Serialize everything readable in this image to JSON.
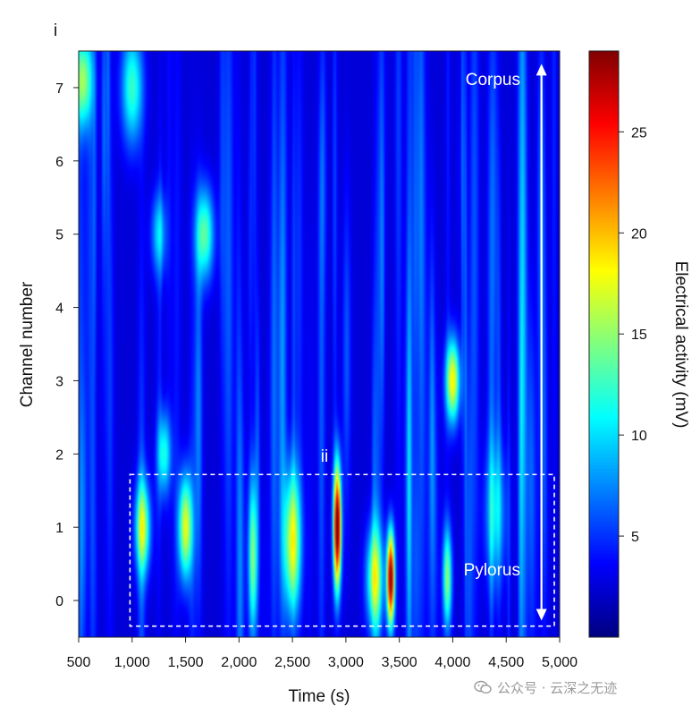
{
  "chart_data": {
    "type": "heatmap",
    "panel_label": "i",
    "xlabel": "Time (s)",
    "ylabel": "Channel number",
    "colorbar_label": "Electrical activity (mV)",
    "xlim": [
      500,
      5000
    ],
    "ylim": [
      -0.5,
      7.5
    ],
    "x_ticks": [
      500,
      1000,
      1500,
      2000,
      2500,
      3000,
      3500,
      4000,
      4500,
      5000
    ],
    "x_tick_labels": [
      "500",
      "1,000",
      "1,500",
      "2,000",
      "2,500",
      "3,000",
      "3,500",
      "4,000",
      "4,500",
      "5,000"
    ],
    "y_ticks": [
      0,
      1,
      2,
      3,
      4,
      5,
      6,
      7
    ],
    "y_tick_labels": [
      "0",
      "1",
      "2",
      "3",
      "4",
      "5",
      "6",
      "7"
    ],
    "colorbar_range": [
      0,
      29
    ],
    "colorbar_ticks": [
      5,
      10,
      15,
      20,
      25
    ],
    "colorbar_tick_labels": [
      "5",
      "10",
      "15",
      "20",
      "25"
    ],
    "colormap": "jet",
    "background_level": 2.5,
    "hotspots": [
      {
        "t": 540,
        "ch": 7.1,
        "st": 60,
        "sc": 0.45,
        "v": 12
      },
      {
        "t": 1000,
        "ch": 7.0,
        "st": 70,
        "sc": 0.55,
        "v": 10
      },
      {
        "t": 1250,
        "ch": 5.0,
        "st": 50,
        "sc": 0.4,
        "v": 7
      },
      {
        "t": 1680,
        "ch": 5.0,
        "st": 60,
        "sc": 0.45,
        "v": 11
      },
      {
        "t": 1100,
        "ch": 1.0,
        "st": 50,
        "sc": 0.45,
        "v": 13
      },
      {
        "t": 1500,
        "ch": 1.0,
        "st": 45,
        "sc": 0.5,
        "v": 15
      },
      {
        "t": 1300,
        "ch": 2.0,
        "st": 45,
        "sc": 0.4,
        "v": 9
      },
      {
        "t": 2130,
        "ch": 0.6,
        "st": 30,
        "sc": 0.8,
        "v": 12
      },
      {
        "t": 2500,
        "ch": 0.8,
        "st": 55,
        "sc": 0.7,
        "v": 15
      },
      {
        "t": 2920,
        "ch": 1.0,
        "st": 25,
        "sc": 0.6,
        "v": 28
      },
      {
        "t": 3270,
        "ch": 0.3,
        "st": 55,
        "sc": 0.5,
        "v": 13
      },
      {
        "t": 3420,
        "ch": 0.3,
        "st": 25,
        "sc": 0.45,
        "v": 27
      },
      {
        "t": 4000,
        "ch": 3.0,
        "st": 45,
        "sc": 0.4,
        "v": 16
      },
      {
        "t": 3950,
        "ch": 0.3,
        "st": 30,
        "sc": 0.5,
        "v": 12
      },
      {
        "t": 4400,
        "ch": 1.2,
        "st": 70,
        "sc": 0.7,
        "v": 7
      }
    ],
    "annotations": {
      "corpus_label": "Corpus",
      "pylorus_label": "Pylorus",
      "inset_label": "ii",
      "arrow_t": 4830,
      "arrow_ch_range": [
        -0.25,
        7.3
      ],
      "box_t_range": [
        980,
        4950
      ],
      "box_ch_range": [
        -0.35,
        1.72
      ]
    }
  },
  "watermark": {
    "text": "公众号 · 云深之无迹"
  }
}
